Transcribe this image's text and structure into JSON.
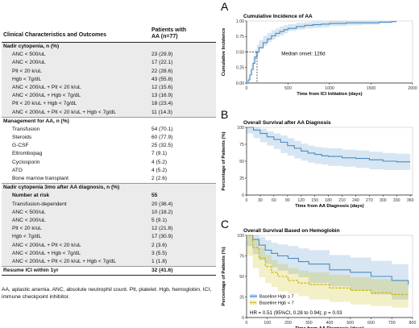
{
  "table": {
    "header_left": "Clinical Characteristics and Outcomes",
    "header_right_line1": "Patients with",
    "header_right_line2": "AA (n=77)",
    "rows": [
      {
        "label": "Nadir cytopenia, n (%)",
        "value": "",
        "kind": "section",
        "shade": true
      },
      {
        "label": "ANC < 500/uL",
        "value": "23 (29.9)",
        "kind": "item",
        "shade": true
      },
      {
        "label": "ANC < 200/uL",
        "value": "17 (22.1)",
        "kind": "item",
        "shade": true
      },
      {
        "label": "Plt < 20 k/uL",
        "value": "22 (28.6)",
        "kind": "item",
        "shade": true
      },
      {
        "label": "Hgb < 7g/dL",
        "value": "43 (55.8)",
        "kind": "item",
        "shade": true
      },
      {
        "label": "ANC < 200/uL + Plt < 20 k/uL",
        "value": "12 (15.6)",
        "kind": "item",
        "shade": true
      },
      {
        "label": "ANC < 200/uL + Hgb < 7g/dL",
        "value": "13 (16.9)",
        "kind": "item",
        "shade": true
      },
      {
        "label": "Plt < 20 k/uL + Hgb < 7g/dL",
        "value": "18 (23.4)",
        "kind": "item",
        "shade": true
      },
      {
        "label": "ANC < 200/uL + Plt < 20 k/uL + Hgb < 7g/dL",
        "value": "11 (14.3)",
        "kind": "item",
        "shade": true
      },
      {
        "label": "Management for AA, n (%)",
        "value": "",
        "kind": "section",
        "shade": false
      },
      {
        "label": "Transfusion",
        "value": "54 (70.1)",
        "kind": "item",
        "shade": false
      },
      {
        "label": "Steroids",
        "value": "60 (77.9)",
        "kind": "item",
        "shade": false
      },
      {
        "label": "G-CSF",
        "value": "25 (32.5)",
        "kind": "item",
        "shade": false
      },
      {
        "label": "Eltrombopag",
        "value": "7 (9.1)",
        "kind": "item",
        "shade": false
      },
      {
        "label": "Cyclosporin",
        "value": "4 (5.2)",
        "kind": "item",
        "shade": false
      },
      {
        "label": "ATG",
        "value": "4 (5.2)",
        "kind": "item",
        "shade": false
      },
      {
        "label": "Bone marrow transplant",
        "value": "2 (2.6)",
        "kind": "item",
        "shade": false
      },
      {
        "label": "Nadir cytopenia 3mo after AA diagnosis, n (%)",
        "value": "",
        "kind": "section",
        "shade": true
      },
      {
        "label": "Number at risk",
        "value": "55",
        "kind": "item-bold",
        "shade": true
      },
      {
        "label": "Transfusion-dependent",
        "value": "20 (36.4)",
        "kind": "item",
        "shade": true
      },
      {
        "label": "ANC < 500/uL",
        "value": "10 (18.2)",
        "kind": "item",
        "shade": true
      },
      {
        "label": "ANC < 200/uL",
        "value": "5 (9.1)",
        "kind": "item",
        "shade": true
      },
      {
        "label": "Plt < 20 k/uL",
        "value": "12 (21.8)",
        "kind": "item",
        "shade": true
      },
      {
        "label": "Hgb < 7g/dL",
        "value": "17 (30.9)",
        "kind": "item",
        "shade": true
      },
      {
        "label": "ANC < 200/uL + Plt < 20 k/uL",
        "value": "2 (3.6)",
        "kind": "item",
        "shade": true
      },
      {
        "label": "ANC < 200/uL + Hgb < 7g/dL",
        "value": "3 (5.5)",
        "kind": "item",
        "shade": true
      },
      {
        "label": "ANC < 200/uL + Plt < 20 k/uL + Hgb < 7g/dL",
        "value": "1 (1.8)",
        "kind": "item",
        "shade": true
      },
      {
        "label": "Resume ICI within 1yr",
        "value": "32 (41.6)",
        "kind": "section",
        "shade": false
      }
    ],
    "footnote": "AA, aplastic anemia. ANC, absolute neutrophil count. Plt, platelet. Hgb, hemoglobin. ICI, immune checkpoint inhibitor."
  },
  "chart_data": [
    {
      "panel": "A",
      "type": "line",
      "title": "Cumulative Incidence of AA",
      "xlabel": "Time from ICI Initiation (days)",
      "ylabel": "Cumulative Incidence",
      "xlim": [
        0,
        2000
      ],
      "ylim": [
        0,
        1.0
      ],
      "xticks": [
        "0",
        "500",
        "1000",
        "1500",
        "2000"
      ],
      "yticks": [
        "0.00",
        "0.25",
        "0.50",
        "0.75",
        "1.00"
      ],
      "annotation": "Median onset: 126d",
      "median_x": 126,
      "color": "#4a8cc4",
      "series": [
        {
          "x": [
            0,
            20,
            40,
            60,
            80,
            100,
            126,
            150,
            200,
            250,
            300,
            350,
            400,
            450,
            500,
            600,
            700,
            800,
            900,
            1000,
            1200,
            1400,
            1600,
            1750,
            1800
          ],
          "y": [
            0,
            0.05,
            0.13,
            0.22,
            0.32,
            0.42,
            0.5,
            0.57,
            0.65,
            0.71,
            0.76,
            0.8,
            0.83,
            0.86,
            0.88,
            0.91,
            0.93,
            0.94,
            0.95,
            0.96,
            0.97,
            0.97,
            0.98,
            0.99,
            1.0
          ],
          "lower": [
            0,
            0.01,
            0.06,
            0.13,
            0.21,
            0.3,
            0.38,
            0.45,
            0.54,
            0.6,
            0.66,
            0.7,
            0.74,
            0.77,
            0.8,
            0.84,
            0.86,
            0.88,
            0.89,
            0.9,
            0.92,
            0.93,
            0.94,
            0.96,
            0.98
          ],
          "upper": [
            0,
            0.1,
            0.21,
            0.32,
            0.43,
            0.54,
            0.62,
            0.69,
            0.76,
            0.81,
            0.85,
            0.88,
            0.91,
            0.93,
            0.95,
            0.97,
            0.98,
            0.99,
            0.99,
            1.0,
            1.0,
            1.0,
            1.0,
            1.0,
            1.0
          ]
        }
      ]
    },
    {
      "panel": "B",
      "type": "line",
      "title": "Overall Survival after AA Diagnosis",
      "xlabel": "Time from AA Diagnosis (days)",
      "ylabel": "Percentage of Patients (%)",
      "xlim": [
        0,
        365
      ],
      "ylim": [
        0,
        100
      ],
      "xticks": [
        "0",
        "30",
        "60",
        "90",
        "120",
        "150",
        "180",
        "210",
        "240",
        "270",
        "300",
        "330",
        "360"
      ],
      "yticks": [
        "0",
        "25",
        "50",
        "75",
        "100"
      ],
      "color": "#4a8cc4",
      "series": [
        {
          "x": [
            0,
            15,
            30,
            45,
            60,
            75,
            90,
            105,
            120,
            135,
            150,
            165,
            180,
            210,
            240,
            270,
            300,
            330,
            360
          ],
          "y": [
            100,
            96,
            91,
            86,
            82,
            78,
            73,
            69,
            65,
            62,
            60,
            58,
            57,
            55,
            54,
            52,
            50,
            49,
            49
          ],
          "lower": [
            100,
            91,
            84,
            78,
            73,
            68,
            62,
            58,
            54,
            51,
            48,
            46,
            45,
            43,
            42,
            40,
            38,
            37,
            37
          ],
          "upper": [
            100,
            100,
            98,
            94,
            91,
            88,
            84,
            80,
            76,
            73,
            71,
            70,
            69,
            67,
            66,
            64,
            62,
            61,
            61
          ]
        }
      ]
    },
    {
      "panel": "C",
      "type": "line",
      "title": "Overall Survival Based on Hemoglobin",
      "xlabel": "Time from AA Diagnosis (days)",
      "ylabel": "Percentage of Patients (%)",
      "xlim": [
        0,
        800
      ],
      "ylim": [
        0,
        100
      ],
      "xticks": [
        "0",
        "100",
        "200",
        "300",
        "400",
        "500",
        "600",
        "700",
        "800"
      ],
      "yticks": [
        "0",
        "25",
        "50",
        "75",
        "100"
      ],
      "annotation": "HR = 0.51 (95%CI, 0.28 to 0.94); p = 0.03",
      "legend_position": "bottom-left",
      "series": [
        {
          "name": "Baseline Hgb ≥ 7",
          "color": "#4a8cc4",
          "x": [
            0,
            30,
            60,
            90,
            120,
            150,
            200,
            250,
            300,
            400,
            500,
            600,
            700,
            780
          ],
          "y": [
            100,
            95,
            88,
            82,
            78,
            75,
            72,
            68,
            65,
            58,
            55,
            50,
            45,
            40
          ],
          "lower": [
            100,
            87,
            77,
            70,
            65,
            61,
            57,
            53,
            49,
            42,
            38,
            33,
            28,
            22
          ],
          "upper": [
            100,
            100,
            98,
            94,
            91,
            89,
            87,
            84,
            82,
            76,
            73,
            69,
            65,
            60
          ]
        },
        {
          "name": "Baseline Hgb < 7",
          "color": "#c8b400",
          "x": [
            0,
            30,
            60,
            90,
            120,
            150,
            200,
            250,
            300,
            400,
            500,
            600,
            700,
            780
          ],
          "y": [
            100,
            85,
            72,
            62,
            55,
            50,
            45,
            42,
            40,
            36,
            33,
            30,
            28,
            28
          ],
          "lower": [
            100,
            75,
            60,
            49,
            42,
            37,
            32,
            29,
            26,
            22,
            19,
            16,
            14,
            12
          ],
          "upper": [
            100,
            95,
            85,
            76,
            70,
            65,
            60,
            57,
            55,
            52,
            49,
            47,
            45,
            45
          ]
        }
      ]
    }
  ]
}
